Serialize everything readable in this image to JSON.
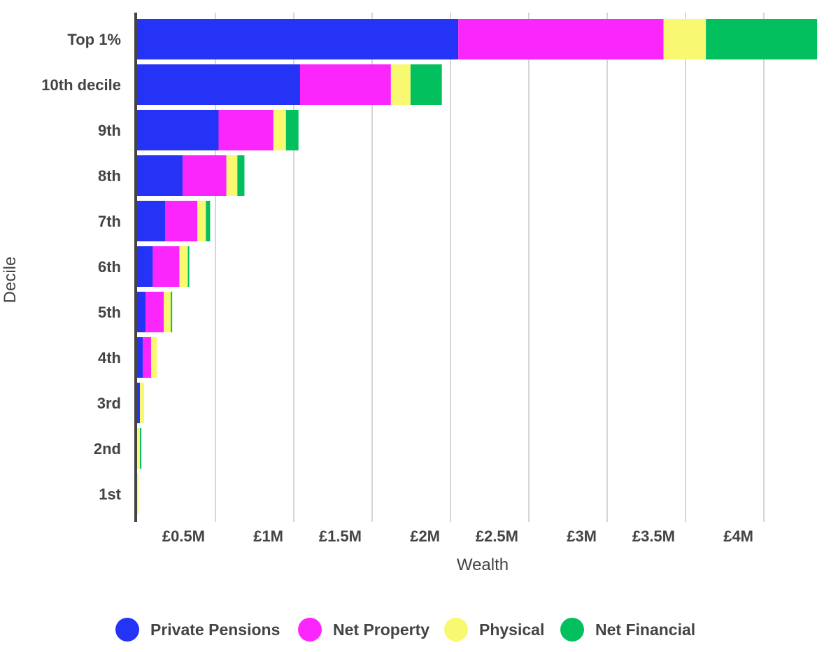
{
  "chart_data": {
    "type": "bar",
    "orientation": "horizontal",
    "stacked": true,
    "title": "",
    "xlabel": "Wealth",
    "ylabel": "Decile",
    "xlim": [
      0,
      4.4
    ],
    "x_unit": "£M",
    "grid": true,
    "legend_position": "bottom",
    "xticks": [
      0.5,
      1,
      1.5,
      2,
      2.5,
      3,
      3.5,
      4
    ],
    "xtick_labels": [
      "£0.5M",
      "£1M",
      "£1.5M",
      "£2M",
      "£2.5M",
      "£3M",
      "£3.5M",
      "£4M"
    ],
    "categories": [
      "Top 1%",
      "10th decile",
      "9th",
      "8th",
      "7th",
      "6th",
      "5th",
      "4th",
      "3rd",
      "2nd",
      "1st"
    ],
    "series": [
      {
        "name": "Private Pensions",
        "color": "#2433F5",
        "values": [
          2.05,
          1.04,
          0.52,
          0.29,
          0.18,
          0.1,
          0.054,
          0.036,
          0.018,
          0.0,
          0.0
        ]
      },
      {
        "name": "Net Property",
        "color": "#FB26FB",
        "values": [
          1.31,
          0.58,
          0.35,
          0.28,
          0.205,
          0.17,
          0.116,
          0.054,
          0.0,
          0.0,
          0.0
        ]
      },
      {
        "name": "Physical",
        "color": "#F8F871",
        "values": [
          0.27,
          0.125,
          0.08,
          0.07,
          0.054,
          0.054,
          0.045,
          0.036,
          0.027,
          0.018,
          0.009
        ]
      },
      {
        "name": "Net Financial",
        "color": "#03C05F",
        "values": [
          0.71,
          0.2,
          0.08,
          0.045,
          0.027,
          0.009,
          0.009,
          0.0,
          0.0,
          0.009,
          0.0
        ]
      }
    ]
  }
}
